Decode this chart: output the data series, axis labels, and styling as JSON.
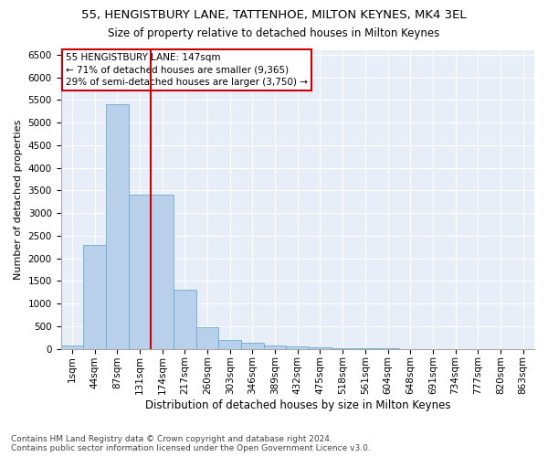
{
  "title1": "55, HENGISTBURY LANE, TATTENHOE, MILTON KEYNES, MK4 3EL",
  "title2": "Size of property relative to detached houses in Milton Keynes",
  "xlabel": "Distribution of detached houses by size in Milton Keynes",
  "ylabel": "Number of detached properties",
  "categories": [
    "1sqm",
    "44sqm",
    "87sqm",
    "131sqm",
    "174sqm",
    "217sqm",
    "260sqm",
    "303sqm",
    "346sqm",
    "389sqm",
    "432sqm",
    "475sqm",
    "518sqm",
    "561sqm",
    "604sqm",
    "648sqm",
    "691sqm",
    "734sqm",
    "777sqm",
    "820sqm",
    "863sqm"
  ],
  "values": [
    75,
    2300,
    5400,
    3400,
    3400,
    1300,
    480,
    190,
    130,
    75,
    55,
    30,
    20,
    10,
    5,
    3,
    2,
    1,
    0,
    0,
    0
  ],
  "bar_color": "#b8d0ea",
  "bar_edgecolor": "#6aaad4",
  "vline_pos": 3.5,
  "vline_color": "#cc0000",
  "annotation_text": "55 HENGISTBURY LANE: 147sqm\n← 71% of detached houses are smaller (9,365)\n29% of semi-detached houses are larger (3,750) →",
  "annotation_box_edgecolor": "#cc0000",
  "ylim_max": 6600,
  "yticks": [
    0,
    500,
    1000,
    1500,
    2000,
    2500,
    3000,
    3500,
    4000,
    4500,
    5000,
    5500,
    6000,
    6500
  ],
  "bg_color": "#e8eef8",
  "footnote1": "Contains HM Land Registry data © Crown copyright and database right 2024.",
  "footnote2": "Contains public sector information licensed under the Open Government Licence v3.0.",
  "title1_fontsize": 9.5,
  "title2_fontsize": 8.5,
  "ylabel_fontsize": 8,
  "xlabel_fontsize": 8.5,
  "tick_fontsize": 7.5,
  "annotation_fontsize": 7.5,
  "footnote_fontsize": 6.5
}
